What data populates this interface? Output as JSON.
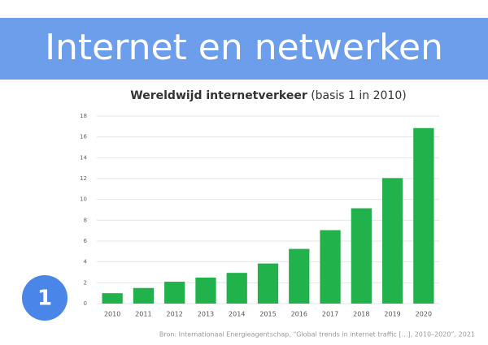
{
  "header": {
    "title": "Internet en netwerken"
  },
  "badge": "1",
  "source": "Bron: Internationaal Energieagentschap, “Global trends in internet traffic […], 2010–2020”, 2021",
  "chart_data": {
    "type": "bar",
    "title": "Wereldwijd internetverkeer",
    "subtitle": "(basis 1 in 2010)",
    "categories": [
      "2010",
      "2011",
      "2012",
      "2013",
      "2014",
      "2015",
      "2016",
      "2017",
      "2018",
      "2019",
      "2020"
    ],
    "values": [
      1,
      1.5,
      2.1,
      2.5,
      2.95,
      3.85,
      5.25,
      7.05,
      9.15,
      12.05,
      16.85
    ],
    "color": "#21b24b",
    "ylim": [
      0,
      18
    ],
    "yticks": [
      0,
      2,
      4,
      6,
      8,
      10,
      12,
      14,
      16,
      18
    ],
    "grid": true
  }
}
